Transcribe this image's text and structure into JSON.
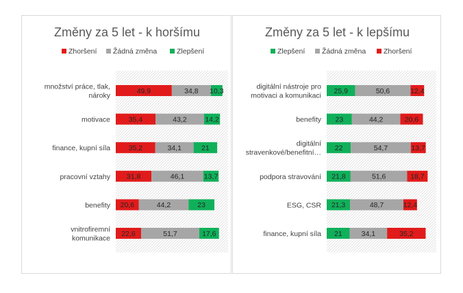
{
  "colors": {
    "worse": "#e11b1b",
    "none": "#a6a6a6",
    "better": "#10b05a",
    "title": "#595959",
    "text": "#404040",
    "hatch": "#d9d9d9"
  },
  "chart_data": [
    {
      "type": "bar",
      "stacked": true,
      "orientation": "horizontal",
      "title": "Změny za 5 let - k horšímu",
      "legend_position": "top",
      "xlim": [
        0,
        100
      ],
      "categories": [
        [
          "množství práce, tlak,",
          "nároky"
        ],
        [
          "motivace"
        ],
        [
          "finance, kupní síla"
        ],
        [
          "pracovní vztahy"
        ],
        [
          "benefity"
        ],
        [
          "vnitrofiremní",
          "komunikace"
        ]
      ],
      "series": [
        {
          "name": "Zhoršení",
          "color_key": "worse",
          "values": [
            49.9,
            35.4,
            35.2,
            31.8,
            20.6,
            22.6
          ],
          "labels": [
            "49,9",
            "35,4",
            "35,2",
            "31,8",
            "20,6",
            "22,6"
          ]
        },
        {
          "name": "Žádná změna",
          "color_key": "none",
          "values": [
            34.8,
            43.2,
            34.1,
            46.1,
            44.2,
            51.7
          ],
          "labels": [
            "34,8",
            "43,2",
            "34,1",
            "46,1",
            "44,2",
            "51,7"
          ]
        },
        {
          "name": "Zlepšení",
          "color_key": "better",
          "values": [
            10.3,
            14.2,
            21,
            13.7,
            23,
            17.6
          ],
          "labels": [
            "10,3",
            "14,2",
            "21",
            "13,7",
            "23",
            "17,6"
          ]
        }
      ]
    },
    {
      "type": "bar",
      "stacked": true,
      "orientation": "horizontal",
      "title": "Změny za 5 let - k lepšímu",
      "legend_position": "top",
      "xlim": [
        0,
        100
      ],
      "categories": [
        [
          "digitální nástroje pro",
          "motivaci a komunikaci"
        ],
        [
          "benefity"
        ],
        [
          "digitální",
          "stravenkové/benefitní…"
        ],
        [
          "podpora stravování"
        ],
        [
          "ESG, CSR"
        ],
        [
          "finance, kupní síla"
        ]
      ],
      "series": [
        {
          "name": "Zlepšení",
          "color_key": "better",
          "values": [
            25.9,
            23,
            22,
            21.8,
            21.3,
            21
          ],
          "labels": [
            "25,9",
            "23",
            "22",
            "21,8",
            "21,3",
            "21"
          ]
        },
        {
          "name": "Žádná změna",
          "color_key": "none",
          "values": [
            50.6,
            44.2,
            54.7,
            51.6,
            48.7,
            34.1
          ],
          "labels": [
            "50,6",
            "44,2",
            "54,7",
            "51,6",
            "48,7",
            "34,1"
          ]
        },
        {
          "name": "Zhoršení",
          "color_key": "worse",
          "values": [
            12.4,
            20.6,
            13.7,
            18.7,
            12.4,
            35.2
          ],
          "labels": [
            "12,4",
            "20,6",
            "13,7",
            "18,7",
            "12,4",
            "35,2"
          ]
        }
      ]
    }
  ]
}
